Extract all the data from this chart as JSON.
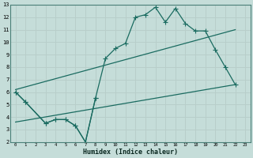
{
  "xlabel": "Humidex (Indice chaleur)",
  "bg_color": "#c5ddd9",
  "grid_color": "#b8ceca",
  "line_color": "#1a6b60",
  "x_min": 0,
  "x_max": 23,
  "y_min": 2,
  "y_max": 13,
  "yticks": [
    2,
    3,
    4,
    5,
    6,
    7,
    8,
    9,
    10,
    11,
    12,
    13
  ],
  "xticks": [
    0,
    1,
    2,
    3,
    4,
    5,
    6,
    7,
    8,
    9,
    10,
    11,
    12,
    13,
    14,
    15,
    16,
    17,
    18,
    19,
    20,
    21,
    22,
    23
  ],
  "jagged_x": [
    0,
    1,
    3,
    4,
    5,
    6,
    7,
    8,
    9,
    10,
    11,
    12,
    13,
    14,
    15,
    16,
    17,
    18,
    19,
    20,
    21,
    22
  ],
  "jagged_y": [
    6.0,
    5.2,
    3.5,
    3.8,
    3.8,
    3.3,
    2.0,
    5.5,
    8.7,
    9.5,
    9.9,
    12.0,
    12.2,
    12.8,
    11.6,
    12.7,
    11.5,
    10.9,
    10.9,
    9.4,
    8.0,
    6.6
  ],
  "lower_x": [
    0,
    1,
    3,
    4,
    5,
    6,
    7,
    8
  ],
  "lower_y": [
    6.0,
    5.2,
    3.5,
    3.8,
    3.8,
    3.3,
    2.0,
    5.5
  ],
  "upper_line_x": [
    0,
    22
  ],
  "upper_line_y": [
    6.2,
    11.0
  ],
  "lower_line_x": [
    0,
    22
  ],
  "lower_line_y": [
    3.6,
    6.6
  ]
}
